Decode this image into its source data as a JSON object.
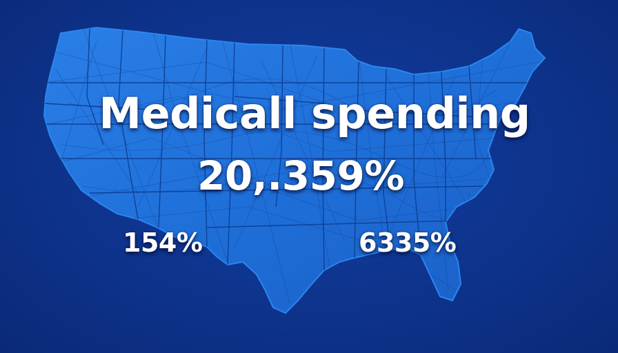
{
  "title": "Medicall spending",
  "total_stat": "20,.359%",
  "region_stats": {
    "west": "154%",
    "southeast": "6335%"
  },
  "colors": {
    "background": "#0e3590",
    "map_fill": "#1f6fd9",
    "map_border": "#0b3a8c",
    "text": "#ffffff"
  }
}
